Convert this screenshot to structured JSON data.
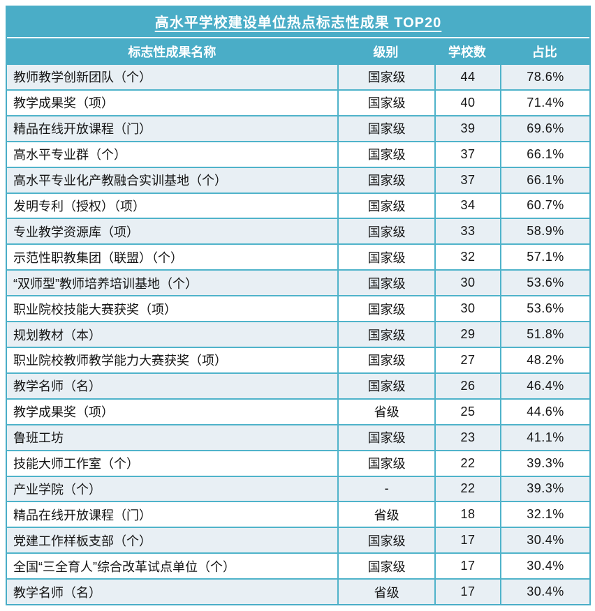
{
  "colors": {
    "teal": "#4aadc7",
    "grid": "#4fb3ca",
    "row_alt": "#e8eff4",
    "row_main": "#ffffff",
    "header_text": "#ffffff",
    "body_text": "#151515"
  },
  "chart_data": {
    "type": "table",
    "title": "高水平学校建设单位热点标志性成果 TOP20",
    "columns": [
      "标志性成果名称",
      "级别",
      "学校数",
      "占比"
    ],
    "rows": [
      [
        "教师教学创新团队（个）",
        "国家级",
        44,
        "78.6%"
      ],
      [
        "教学成果奖（项）",
        "国家级",
        40,
        "71.4%"
      ],
      [
        "精品在线开放课程（门）",
        "国家级",
        39,
        "69.6%"
      ],
      [
        "高水平专业群（个）",
        "国家级",
        37,
        "66.1%"
      ],
      [
        "高水平专业化产教融合实训基地（个）",
        "国家级",
        37,
        "66.1%"
      ],
      [
        "发明专利（授权）（项）",
        "国家级",
        34,
        "60.7%"
      ],
      [
        "专业教学资源库（项）",
        "国家级",
        33,
        "58.9%"
      ],
      [
        "示范性职教集团（联盟）（个）",
        "国家级",
        32,
        "57.1%"
      ],
      [
        "“双师型”教师培养培训基地（个）",
        "国家级",
        30,
        "53.6%"
      ],
      [
        "职业院校技能大赛获奖（项）",
        "国家级",
        30,
        "53.6%"
      ],
      [
        "规划教材（本）",
        "国家级",
        29,
        "51.8%"
      ],
      [
        "职业院校教师教学能力大赛获奖（项）",
        "国家级",
        27,
        "48.2%"
      ],
      [
        "教学名师（名）",
        "国家级",
        26,
        "46.4%"
      ],
      [
        "教学成果奖（项）",
        "省级",
        25,
        "44.6%"
      ],
      [
        "鲁班工坊",
        "国家级",
        23,
        "41.1%"
      ],
      [
        "技能大师工作室（个）",
        "国家级",
        22,
        "39.3%"
      ],
      [
        "产业学院（个）",
        "-",
        22,
        "39.3%"
      ],
      [
        "精品在线开放课程（门）",
        "省级",
        18,
        "32.1%"
      ],
      [
        "党建工作样板支部（个）",
        "国家级",
        17,
        "30.4%"
      ],
      [
        "全国“三全育人”综合改革试点单位（个）",
        "国家级",
        17,
        "30.4%"
      ],
      [
        "教学名师（名）",
        "省级",
        17,
        "30.4%"
      ]
    ]
  }
}
